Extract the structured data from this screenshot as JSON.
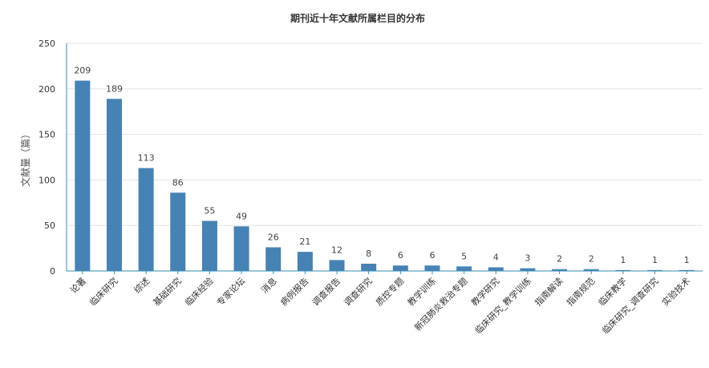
{
  "chart_data": {
    "type": "bar",
    "title": "期刊近十年文献所属栏目的分布",
    "xlabel": "",
    "ylabel": "文献量（篇）",
    "ylim": [
      0,
      250
    ],
    "yticks": [
      0,
      50,
      100,
      150,
      200,
      250
    ],
    "grid": true,
    "bar_color": "#4682b4",
    "axis_color": "#3a8fb7",
    "categories": [
      "论著",
      "临床研究",
      "综述",
      "基础研究",
      "临床经验",
      "专家论坛",
      "消息",
      "病例报告",
      "调查报告",
      "调查研究",
      "质控专题",
      "教学训练",
      "新冠肺炎救治专题",
      "教学研究",
      "临床研究_教学训练",
      "指南解读",
      "指南规范",
      "临床教学",
      "临床研究_调查研究",
      "实验技术"
    ],
    "values": [
      209,
      189,
      113,
      86,
      55,
      49,
      26,
      21,
      12,
      8,
      6,
      6,
      5,
      4,
      3,
      2,
      2,
      1,
      1,
      1
    ]
  }
}
